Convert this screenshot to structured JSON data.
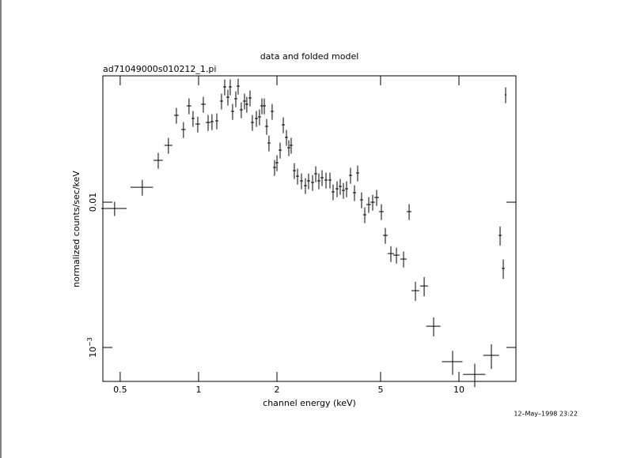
{
  "chart_data": {
    "type": "scatter",
    "title": "data and folded model",
    "subtitle": "ad71049000s010212_1.pi",
    "xlabel": "channel energy (keV)",
    "ylabel": "normalized counts/sec/keV",
    "footer": "12–May–1998 23:22",
    "xscale": "log",
    "yscale": "log",
    "xlim": [
      0.429,
      16.55
    ],
    "ylim": [
      0.000584,
      0.0741
    ],
    "xticks": [
      0.5,
      1,
      2,
      5,
      10
    ],
    "yticks": [
      0.01,
      {
        "value": 0.001,
        "label": "10",
        "sup": "−3"
      }
    ],
    "x": [
      0.476,
      0.608,
      0.7,
      0.766,
      0.822,
      0.875,
      0.919,
      0.952,
      0.993,
      1.043,
      1.088,
      1.126,
      1.175,
      1.225,
      1.26,
      1.296,
      1.323,
      1.351,
      1.39,
      1.419,
      1.459,
      1.501,
      1.532,
      1.576,
      1.609,
      1.667,
      1.714,
      1.751,
      1.788,
      1.826,
      1.864,
      1.917,
      1.958,
      2.0,
      2.057,
      2.115,
      2.175,
      2.221,
      2.268,
      2.332,
      2.399,
      2.484,
      2.572,
      2.645,
      2.74,
      2.818,
      2.897,
      2.98,
      3.086,
      3.196,
      3.286,
      3.403,
      3.5,
      3.599,
      3.702,
      3.833,
      3.97,
      4.082,
      4.227,
      4.348,
      4.503,
      4.664,
      4.83,
      5.036,
      5.215,
      5.477,
      5.753,
      6.128,
      6.436,
      6.806,
      7.352,
      7.993,
      9.456,
      11.5,
      13.32,
      14.39,
      14.8,
      15.11
    ],
    "xerr": [
      0.053,
      0.06,
      0.029,
      0.027,
      0.017,
      0.018,
      0.019,
      0.013,
      0.021,
      0.022,
      0.023,
      0.016,
      0.016,
      0.017,
      0.018,
      0.018,
      0.019,
      0.019,
      0.019,
      0.02,
      0.02,
      0.021,
      0.021,
      0.022,
      0.023,
      0.023,
      0.024,
      0.025,
      0.025,
      0.026,
      0.026,
      0.027,
      0.027,
      0.028,
      0.029,
      0.03,
      0.03,
      0.031,
      0.032,
      0.033,
      0.034,
      0.035,
      0.036,
      0.037,
      0.038,
      0.039,
      0.041,
      0.042,
      0.043,
      0.045,
      0.046,
      0.048,
      0.049,
      0.05,
      0.052,
      0.054,
      0.056,
      0.057,
      0.059,
      0.061,
      0.095,
      0.098,
      0.101,
      0.106,
      0.11,
      0.153,
      0.161,
      0.172,
      0.135,
      0.238,
      0.257,
      0.504,
      0.861,
      1.127,
      0.932,
      0.201,
      0.207,
      0.106
    ],
    "series": [
      {
        "color": "#000000",
        "values": [
          0.00905,
          0.01268,
          0.01941,
          0.02462,
          0.03962,
          0.03162,
          0.04603,
          0.03769,
          0.03451,
          0.0472,
          0.03539,
          0.03584,
          0.0363,
          0.04963,
          0.06216,
          0.05283,
          0.06216,
          0.04217,
          0.05152,
          0.06295,
          0.04324,
          0.04963,
          0.0472,
          0.05216,
          0.03539,
          0.03769,
          0.03864,
          0.04603,
          0.04603,
          0.03325,
          0.02556,
          0.04217,
          0.01734,
          0.01869,
          0.02284,
          0.03409,
          0.02791,
          0.02371,
          0.02462,
          0.0165,
          0.01511,
          0.01402,
          0.013,
          0.01402,
          0.01367,
          0.01569,
          0.01402,
          0.01474,
          0.0142,
          0.0142,
          0.01177,
          0.01237,
          0.01284,
          0.01206,
          0.01237,
          0.0153,
          0.01162,
          0.01589,
          0.01038,
          0.00819,
          0.00963,
          0.01,
          0.01078,
          0.00861,
          0.00591,
          0.00443,
          0.00432,
          0.00406,
          0.00861,
          0.00246,
          0.00265,
          0.0014,
          0.000798,
          0.000653,
          0.000882,
          0.00591,
          0.0035,
          0.05485
        ],
        "yerr": [
          0.00102,
          0.00159,
          0.00243,
          0.00308,
          0.00495,
          0.00395,
          0.00575,
          0.00471,
          0.00431,
          0.0059,
          0.00442,
          0.00448,
          0.00454,
          0.0062,
          0.00777,
          0.0066,
          0.00777,
          0.00527,
          0.00644,
          0.00787,
          0.00541,
          0.0062,
          0.0059,
          0.00652,
          0.00442,
          0.00471,
          0.00483,
          0.00575,
          0.00575,
          0.00416,
          0.0032,
          0.00527,
          0.00217,
          0.00234,
          0.00286,
          0.00426,
          0.00349,
          0.00296,
          0.00308,
          0.00206,
          0.00189,
          0.00175,
          0.00163,
          0.00175,
          0.00171,
          0.00196,
          0.00175,
          0.00184,
          0.00178,
          0.00178,
          0.00147,
          0.00155,
          0.00161,
          0.00151,
          0.00155,
          0.00191,
          0.00145,
          0.00199,
          0.0013,
          0.00102,
          0.0012,
          0.00125,
          0.00135,
          0.00108,
          0.00074,
          0.00055,
          0.00054,
          0.00051,
          0.00108,
          0.00037,
          0.0004,
          0.00021,
          0.00015,
          0.00012,
          0.00017,
          0.00089,
          0.00053,
          0.00686
        ]
      }
    ]
  }
}
